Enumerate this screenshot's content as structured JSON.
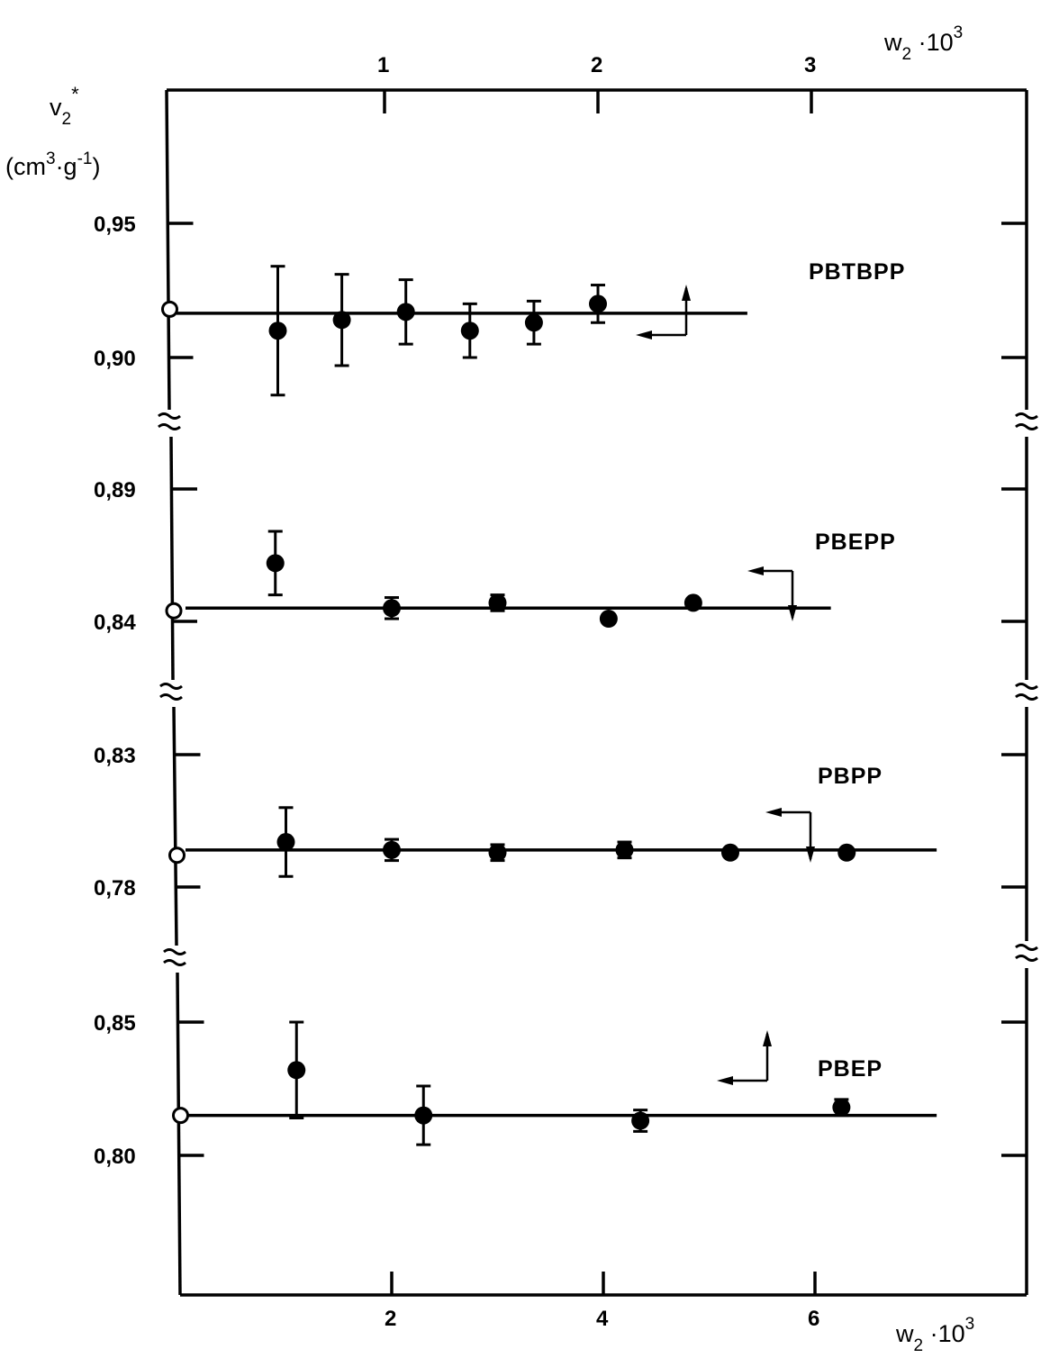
{
  "chart_data": [
    {
      "type": "scatter",
      "panel": "PBTBPP",
      "series_label": "PBTBPP",
      "x_axis": "top",
      "x_ticks": [
        "1",
        "2",
        "3"
      ],
      "y_ticks": [
        "0,95",
        "0,90"
      ],
      "ylim": [
        0.88,
        0.97
      ],
      "xlim": [
        0,
        3.15
      ],
      "points": [
        {
          "x": 0.5,
          "y": 0.91,
          "err": 0.024
        },
        {
          "x": 0.8,
          "y": 0.914,
          "err": 0.017
        },
        {
          "x": 1.1,
          "y": 0.917,
          "err": 0.012
        },
        {
          "x": 1.4,
          "y": 0.91,
          "err": 0.01
        },
        {
          "x": 1.7,
          "y": 0.913,
          "err": 0.008
        },
        {
          "x": 2.0,
          "y": 0.92,
          "err": 0.007
        }
      ],
      "extrapolated": {
        "x": 0,
        "y": 0.918
      },
      "fit": {
        "x0": 0,
        "y0": 0.9165,
        "x1": 2.7,
        "y1": 0.9165
      }
    },
    {
      "type": "scatter",
      "panel": "PBEPP",
      "series_label": "PBEPP",
      "x_axis": "bottom",
      "y_ticks": [
        "0,89",
        "0,84"
      ],
      "ylim": [
        0.83,
        0.9
      ],
      "xlim": [
        0,
        7.2
      ],
      "points": [
        {
          "x": 0.9,
          "y": 0.862,
          "err": 0.012
        },
        {
          "x": 2.0,
          "y": 0.845,
          "err": 0.004
        },
        {
          "x": 3.0,
          "y": 0.847,
          "err": 0.003
        },
        {
          "x": 4.05,
          "y": 0.841,
          "err": 0
        },
        {
          "x": 4.85,
          "y": 0.847,
          "err": 0
        }
      ],
      "extrapolated": {
        "x": 0,
        "y": 0.844
      },
      "fit": {
        "x0": 0,
        "y0": 0.845,
        "x1": 6.15,
        "y1": 0.845
      }
    },
    {
      "type": "scatter",
      "panel": "PBPP",
      "series_label": "PBPP",
      "x_axis": "bottom",
      "y_ticks": [
        "0,83",
        "0,78"
      ],
      "ylim": [
        0.77,
        0.84
      ],
      "xlim": [
        0,
        7.2
      ],
      "points": [
        {
          "x": 1.0,
          "y": 0.797,
          "err": 0.013
        },
        {
          "x": 2.0,
          "y": 0.794,
          "err": 0.004
        },
        {
          "x": 3.0,
          "y": 0.793,
          "err": 0.003
        },
        {
          "x": 4.2,
          "y": 0.794,
          "err": 0.003
        },
        {
          "x": 5.2,
          "y": 0.793,
          "err": 0
        },
        {
          "x": 6.3,
          "y": 0.793,
          "err": 0
        }
      ],
      "extrapolated": {
        "x": 0,
        "y": 0.792
      },
      "fit": {
        "x0": 0,
        "y0": 0.794,
        "x1": 7.15,
        "y1": 0.794
      }
    },
    {
      "type": "scatter",
      "panel": "PBEP",
      "series_label": "PBEP",
      "x_axis": "bottom",
      "x_ticks": [
        "2",
        "4",
        "6"
      ],
      "y_ticks": [
        "0,85",
        "0,80"
      ],
      "ylim": [
        0.77,
        0.88
      ],
      "xlim": [
        0,
        7.2
      ],
      "points": [
        {
          "x": 1.1,
          "y": 0.832,
          "err": 0.018
        },
        {
          "x": 2.3,
          "y": 0.815,
          "err": 0.011
        },
        {
          "x": 4.35,
          "y": 0.813,
          "err": 0.004
        },
        {
          "x": 6.25,
          "y": 0.818,
          "err": 0.003
        }
      ],
      "extrapolated": {
        "x": 0,
        "y": 0.815
      },
      "fit": {
        "x0": 0,
        "y0": 0.815,
        "x1": 7.15,
        "y1": 0.815
      }
    }
  ],
  "labels": {
    "y_axis_line1": "v",
    "y_axis_sub": "2",
    "y_axis_sup": "*",
    "y_axis_units_open": "(cm",
    "y_axis_units_sup1": "3",
    "y_axis_units_mid": "·g",
    "y_axis_units_sup2": "-1",
    "y_axis_units_close": ")",
    "x_top_main": "w",
    "x_top_sub": "2",
    "x_top_dot": " ·10",
    "x_top_sup": "3",
    "x_bottom_main": "w",
    "x_bottom_sub": "2",
    "x_bottom_dot": " ·10",
    "x_bottom_sup": "3"
  }
}
